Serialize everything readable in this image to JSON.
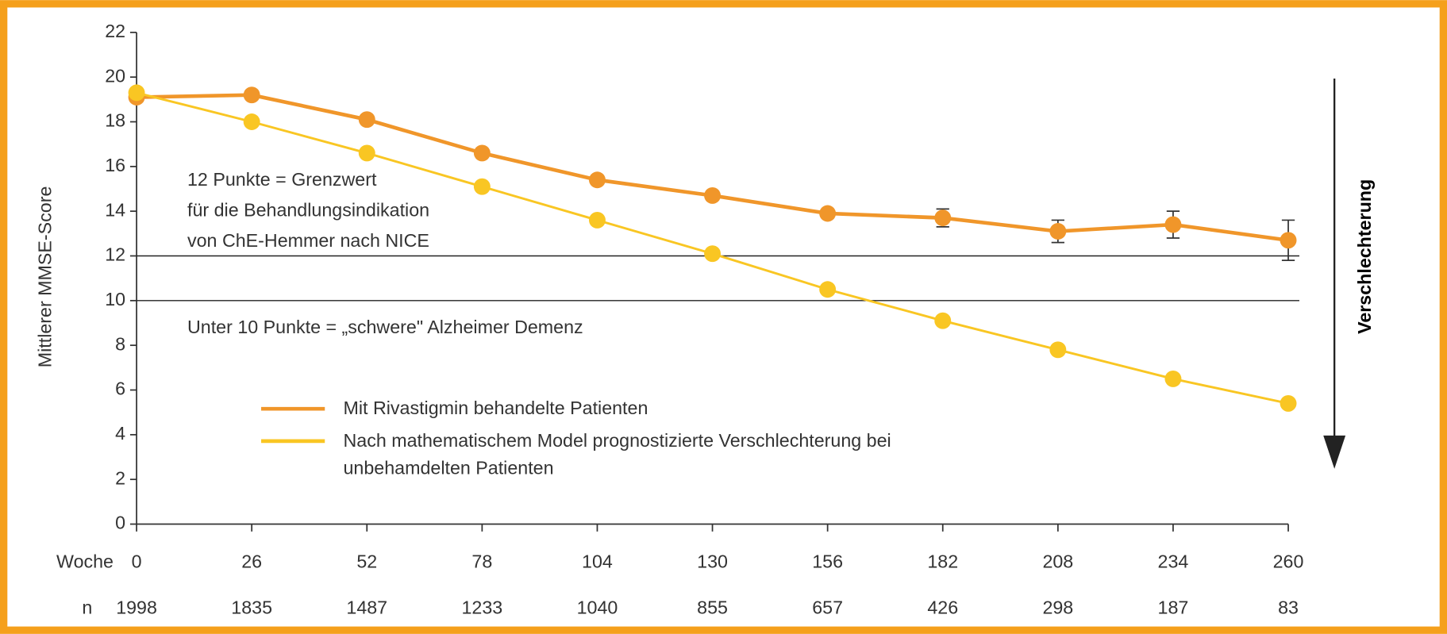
{
  "chart_data": {
    "type": "line",
    "ylabel": "Mittlerer MMSE-Score",
    "xlabel": "Woche",
    "n_label": "n",
    "x": [
      0,
      26,
      52,
      78,
      104,
      130,
      156,
      182,
      208,
      234,
      260
    ],
    "n": [
      1998,
      1835,
      1487,
      1233,
      1040,
      855,
      657,
      426,
      298,
      187,
      83
    ],
    "xlim": [
      0,
      260
    ],
    "xticks": [
      0,
      26,
      52,
      78,
      104,
      130,
      156,
      182,
      208,
      234,
      260
    ],
    "ylim": [
      0,
      22
    ],
    "yticks": [
      0,
      2,
      4,
      6,
      8,
      10,
      12,
      14,
      16,
      18,
      20,
      22
    ],
    "reference_lines": [
      12,
      10
    ],
    "annotation_threshold": [
      "12 Punkte = Grenzwert",
      "für die Behandlungsindikation",
      "von ChE-Hemmer nach NICE"
    ],
    "annotation_severe": "Unter 10 Punkte = „schwere\" Alzheimer Demenz",
    "arrow_label": "Verschlechterung",
    "series": [
      {
        "name": "Mit Rivastigmin behandelte Patienten",
        "color": "#f0962a",
        "values": [
          19.1,
          19.2,
          18.1,
          16.6,
          15.4,
          14.7,
          13.9,
          13.7,
          13.1,
          13.4,
          12.7
        ],
        "errors": [
          0.2,
          0.2,
          0.2,
          0.2,
          0.2,
          0.2,
          0.2,
          0.4,
          0.5,
          0.6,
          0.9
        ]
      },
      {
        "name": "Nach mathematischem Model prognostizierte Verschlechterung bei unbehamdelten Patienten",
        "color": "#f9c623",
        "values": [
          19.3,
          18.0,
          16.6,
          15.1,
          13.6,
          12.1,
          10.5,
          9.1,
          7.8,
          6.5,
          5.4
        ]
      }
    ]
  }
}
